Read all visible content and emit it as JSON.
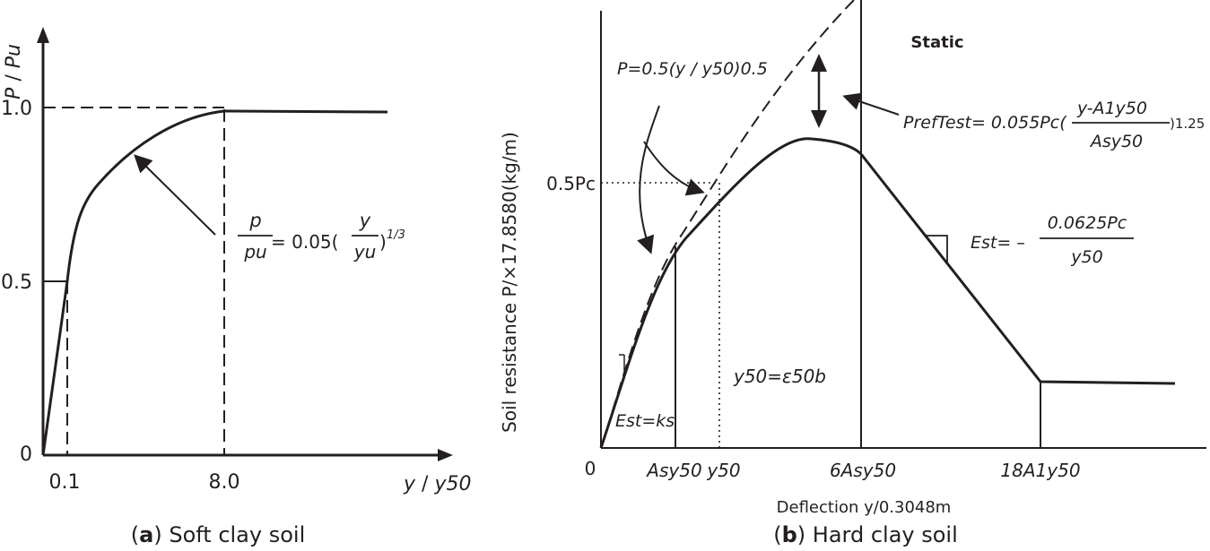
{
  "panel_a": {
    "y_axis_label_p": "P",
    "y_axis_label_slash": " / ",
    "y_axis_label_pu": "Pu",
    "x_axis_label_y": "y",
    "x_axis_label_slash": " / ",
    "x_axis_label_y50": "y50",
    "y_ticks": [
      "1.0",
      "0.5",
      "0"
    ],
    "x_ticks": [
      "0.1",
      "8.0"
    ],
    "formula": {
      "lhs_num": "p",
      "lhs_den": "pu",
      "eq": "= 0.05(",
      "rhs_num": "y",
      "rhs_den": "yu",
      "close": ")",
      "exp": "1/3"
    },
    "caption_letter": "a",
    "caption_text": "Soft clay soil"
  },
  "panel_b": {
    "static_label": "Static",
    "y_axis_label": "Soil resistance P/×17.8580(kg/m)",
    "x_axis_label": "Deflection y/0.3048m",
    "origin": "0",
    "y_tick_05pc": "0.5Pc",
    "x_ticks": [
      "Asy50",
      "y50",
      "6Asy50",
      "18A1y50"
    ],
    "eq_initial": "P=0.5(y / y50)0.5",
    "eq_ref_lhs": "PrefTest= 0.055Pc(",
    "eq_ref_num": "y-A1y50",
    "eq_ref_den": "Asy50",
    "eq_ref_exp": ")1.25",
    "eq_est_lhs": "Est= –",
    "eq_est_num": "0.0625Pc",
    "eq_est_den": "y50",
    "eq_y50": "y50=ε50b",
    "eq_ks": "Est=ks",
    "caption_letter": "b",
    "caption_text": "Hard clay soil"
  }
}
